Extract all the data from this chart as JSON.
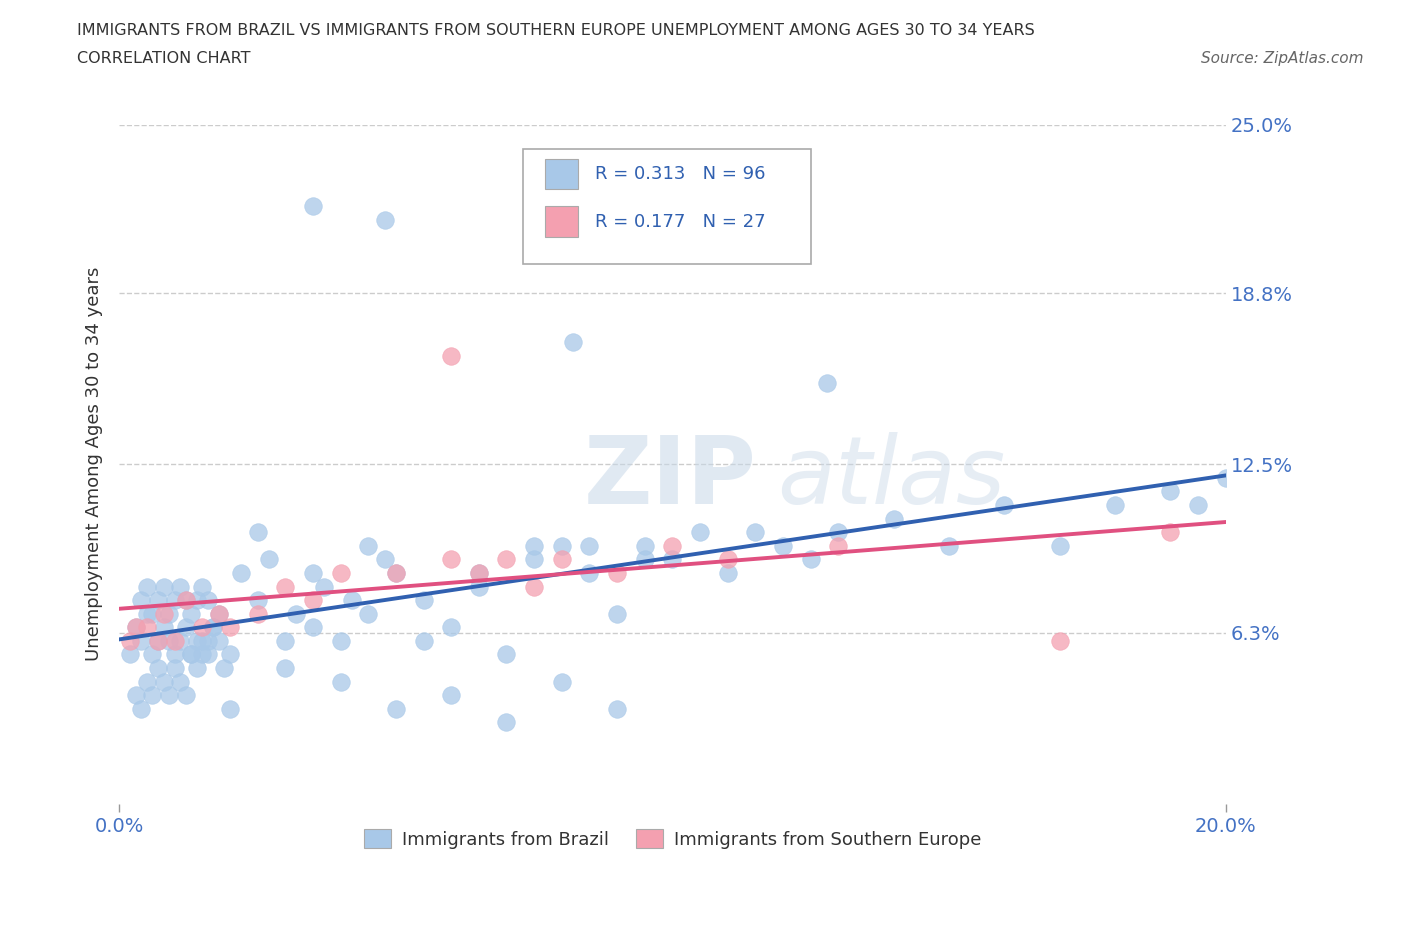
{
  "title_line1": "IMMIGRANTS FROM BRAZIL VS IMMIGRANTS FROM SOUTHERN EUROPE UNEMPLOYMENT AMONG AGES 30 TO 34 YEARS",
  "title_line2": "CORRELATION CHART",
  "source": "Source: ZipAtlas.com",
  "ylabel": "Unemployment Among Ages 30 to 34 years",
  "xlim": [
    0.0,
    0.2
  ],
  "ylim": [
    0.0,
    0.25
  ],
  "ytick_labels": [
    "6.3%",
    "12.5%",
    "18.8%",
    "25.0%"
  ],
  "ytick_vals": [
    0.063,
    0.125,
    0.188,
    0.25
  ],
  "brazil_R": 0.313,
  "brazil_N": 96,
  "southern_R": 0.177,
  "southern_N": 27,
  "brazil_color": "#a8c8e8",
  "southern_color": "#f4a0b0",
  "brazil_line_color": "#3060b0",
  "southern_line_color": "#e05080",
  "background_color": "#ffffff",
  "legend_text_color": "#3060b0",
  "tick_label_color": "#4472c4"
}
